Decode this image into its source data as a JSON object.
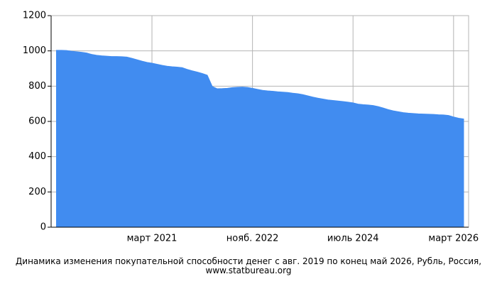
{
  "chart_data": {
    "type": "area",
    "title": "Динамика изменения покупательной способности денег с авг. 2019 по конец май 2026, Рубль, Россия, www.statbureau.org",
    "categories": [
      null,
      null,
      null,
      null,
      null,
      null,
      null,
      null,
      null,
      null,
      null,
      null,
      null,
      null,
      null,
      null,
      null,
      null,
      null,
      "март 2021",
      null,
      null,
      null,
      null,
      null,
      null,
      null,
      null,
      null,
      null,
      null,
      null,
      null,
      null,
      null,
      null,
      null,
      null,
      null,
      "нояб. 2022",
      null,
      null,
      null,
      null,
      null,
      null,
      null,
      null,
      null,
      null,
      null,
      null,
      null,
      null,
      null,
      null,
      null,
      null,
      null,
      "июль 2024",
      null,
      null,
      null,
      null,
      null,
      null,
      null,
      null,
      null,
      null,
      null,
      null,
      null,
      null,
      null,
      null,
      null,
      null,
      null,
      "март 2026",
      null,
      null
    ],
    "values": [
      1003,
      1003,
      1002,
      998,
      995,
      992,
      988,
      980,
      975,
      972,
      970,
      968,
      968,
      967,
      965,
      958,
      950,
      942,
      935,
      930,
      924,
      918,
      913,
      910,
      908,
      905,
      895,
      887,
      880,
      872,
      862,
      798,
      785,
      786,
      788,
      792,
      794,
      795,
      793,
      788,
      782,
      776,
      773,
      771,
      768,
      766,
      764,
      760,
      757,
      752,
      745,
      738,
      732,
      727,
      722,
      719,
      716,
      713,
      709,
      705,
      698,
      695,
      693,
      690,
      684,
      676,
      667,
      660,
      655,
      650,
      647,
      645,
      643,
      642,
      641,
      640,
      638,
      637,
      634,
      625,
      618,
      614
    ],
    "color": "#418cf0",
    "ylim": [
      0,
      1200
    ],
    "yticks": [
      0,
      200,
      400,
      600,
      800,
      1000,
      1200
    ],
    "grid": true
  }
}
